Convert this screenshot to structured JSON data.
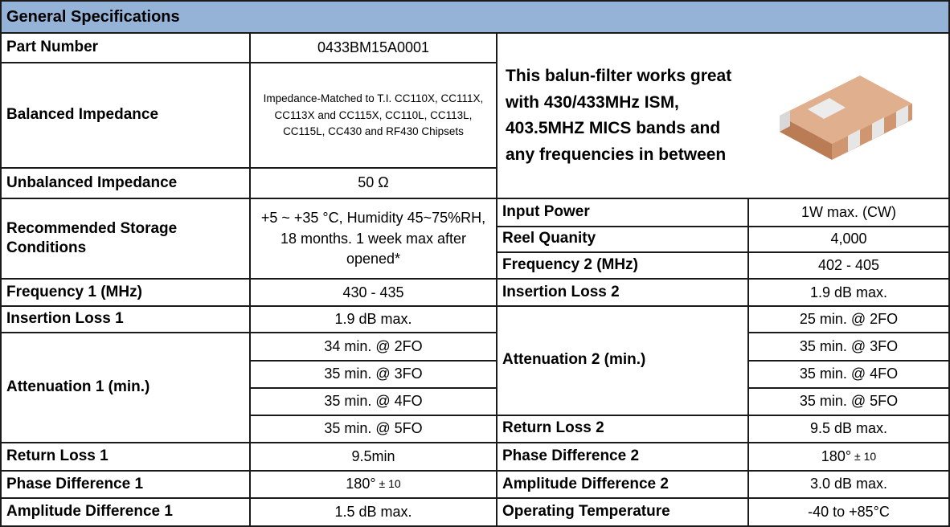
{
  "title": "General Specifications",
  "left": [
    {
      "label": "Part Number",
      "value": "0433BM15A0001"
    },
    {
      "label": "Balanced Impedance",
      "value": "Impedance-Matched to T.I. CC110X, CC111X, CC113X and CC115X, CC110L, CC113L, CC115L, CC430 and RF430 Chipsets"
    },
    {
      "label": "Unbalanced Impedance",
      "value": "50 Ω"
    },
    {
      "label": "Recommended Storage Conditions",
      "value": "+5 ~ +35 °C, Humidity 45~75%RH, 18 months. 1 week max after opened*"
    },
    {
      "label": "Frequency 1 (MHz)",
      "value": "430 - 435"
    },
    {
      "label": "Insertion Loss 1",
      "value": "1.9 dB max."
    },
    {
      "label": "Attenuation 1 (min.)",
      "values": [
        "34 min. @ 2FO",
        "35 min. @ 3FO",
        "35 min. @ 4FO",
        "35 min. @ 5FO"
      ]
    },
    {
      "label": "Return Loss 1",
      "value": "9.5min"
    },
    {
      "label": "Phase Difference 1",
      "value": "180°",
      "tolerance": "± 10"
    },
    {
      "label": "Amplitude Difference 1",
      "value": "1.5 dB max."
    }
  ],
  "note": "This balun-filter works great with 430/433MHz ISM, 403.5MHZ MICS bands and any frequencies in between",
  "right": [
    {
      "label": "Input Power",
      "value": "1W max. (CW)"
    },
    {
      "label": "Reel Quanity",
      "value": "4,000"
    },
    {
      "label": "Frequency 2 (MHz)",
      "value": "402 - 405"
    },
    {
      "label": "Insertion Loss 2",
      "value": "1.9 dB max."
    },
    {
      "label": "Attenuation 2 (min.)",
      "values": [
        "25 min. @ 2FO",
        "35 min. @ 3FO",
        "35 min. @ 4FO",
        "35 min. @ 5FO"
      ]
    },
    {
      "label": "Return Loss 2",
      "value": "9.5 dB max."
    },
    {
      "label": "Phase Difference 2",
      "value": "180°",
      "tolerance": "± 10"
    },
    {
      "label": "Amplitude Difference 2",
      "value": "3.0 dB max."
    },
    {
      "label": "Operating Temperature",
      "value": "-40 to +85°C"
    }
  ]
}
